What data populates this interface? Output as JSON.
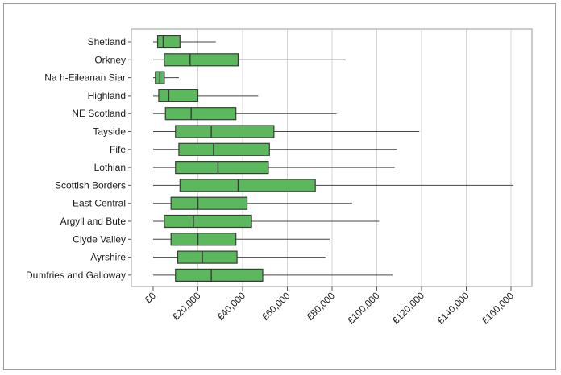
{
  "chart_data": {
    "type": "boxplot",
    "title": "",
    "xlabel": "",
    "ylabel": "",
    "xlim": [
      0,
      160000
    ],
    "x_ticks": [
      0,
      20000,
      40000,
      60000,
      80000,
      100000,
      120000,
      140000,
      160000
    ],
    "x_tick_labels": [
      "£0",
      "£20,000",
      "£40,000",
      "£60,000",
      "£80,000",
      "£100,000",
      "£120,000",
      "£140,000",
      "£160,000"
    ],
    "grid": "vertical",
    "box_color": "#5cb85c",
    "box_edge_color": "#3a3a3a",
    "categories": [
      {
        "label": "Shetland",
        "min": 0,
        "q1": 2000,
        "median": 4500,
        "q3": 12000,
        "max": 28000
      },
      {
        "label": "Orkney",
        "min": 0,
        "q1": 5000,
        "median": 16500,
        "q3": 38000,
        "max": 86000
      },
      {
        "label": "Na h-Eileanan Siar",
        "min": 0,
        "q1": 1000,
        "median": 3000,
        "q3": 5000,
        "max": 11500
      },
      {
        "label": "Highland",
        "min": 0,
        "q1": 2500,
        "median": 7000,
        "q3": 20000,
        "max": 47000
      },
      {
        "label": "NE Scotland",
        "min": 0,
        "q1": 5500,
        "median": 17000,
        "q3": 37000,
        "max": 82000
      },
      {
        "label": "Tayside",
        "min": 0,
        "q1": 10000,
        "median": 26000,
        "q3": 54000,
        "max": 119000
      },
      {
        "label": "Fife",
        "min": 0,
        "q1": 11500,
        "median": 27000,
        "q3": 52000,
        "max": 109000
      },
      {
        "label": "Lothian",
        "min": 0,
        "q1": 10000,
        "median": 29000,
        "q3": 51500,
        "max": 108000
      },
      {
        "label": "Scottish Borders",
        "min": 0,
        "q1": 12000,
        "median": 38000,
        "q3": 72500,
        "max": 161000
      },
      {
        "label": "East Central",
        "min": 0,
        "q1": 8000,
        "median": 20000,
        "q3": 42000,
        "max": 89000
      },
      {
        "label": "Argyll and Bute",
        "min": 0,
        "q1": 5000,
        "median": 18000,
        "q3": 44000,
        "max": 101000
      },
      {
        "label": "Clyde Valley",
        "min": 0,
        "q1": 8000,
        "median": 20000,
        "q3": 37000,
        "max": 79000
      },
      {
        "label": "Ayrshire",
        "min": 0,
        "q1": 11000,
        "median": 22000,
        "q3": 37500,
        "max": 77000
      },
      {
        "label": "Dumfries and Galloway",
        "min": 0,
        "q1": 10000,
        "median": 26000,
        "q3": 49000,
        "max": 107000
      }
    ]
  }
}
